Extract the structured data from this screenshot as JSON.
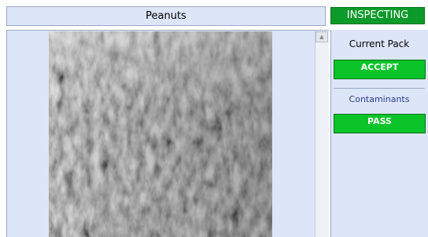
{
  "header": {
    "title": "Peanuts",
    "status": "INSPECTING"
  },
  "panel": {
    "heading": "Current Pack",
    "result": "ACCEPT",
    "section": "Contaminants",
    "section_result": "PASS"
  }
}
